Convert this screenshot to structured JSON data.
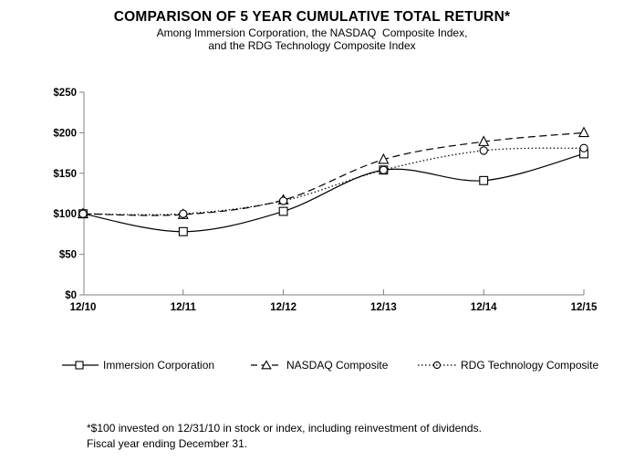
{
  "title": "COMPARISON OF 5 YEAR CUMULATIVE TOTAL RETURN*",
  "subtitle_line1": "Among Immersion Corporation, the NASDAQ  Composite Index,",
  "subtitle_line2": "and the RDG Technology Composite Index",
  "footnote_line1": "*$100 invested on 12/31/10 in stock or index, including reinvestment of dividends.",
  "footnote_line2": "Fiscal year ending December 31.",
  "colors": {
    "series": "#000000",
    "axis": "#808080",
    "background": "#ffffff"
  },
  "chart_data": {
    "type": "line",
    "title": "COMPARISON OF 5 YEAR CUMULATIVE TOTAL RETURN*",
    "xlabel": "",
    "ylabel": "",
    "x": [
      "12/10",
      "12/11",
      "12/12",
      "12/13",
      "12/14",
      "12/15"
    ],
    "series": [
      {
        "name": "Immersion Corporation",
        "marker": "square",
        "line_style": "solid",
        "values": [
          100,
          78,
          103,
          154,
          141,
          174
        ]
      },
      {
        "name": "NASDAQ Composite",
        "marker": "triangle",
        "line_style": "dashed",
        "values": [
          100,
          99,
          117,
          167,
          189,
          200
        ]
      },
      {
        "name": "RDG Technology Composite",
        "marker": "circle",
        "line_style": "dotted",
        "values": [
          100,
          100,
          116,
          154,
          178,
          181
        ]
      }
    ],
    "ylim": [
      0,
      250
    ],
    "ytick_step": 50,
    "ytick_labels": [
      "$0",
      "$50",
      "$100",
      "$150",
      "$200",
      "$250"
    ],
    "grid": false,
    "smooth_lines": true,
    "legend_position": "bottom"
  }
}
